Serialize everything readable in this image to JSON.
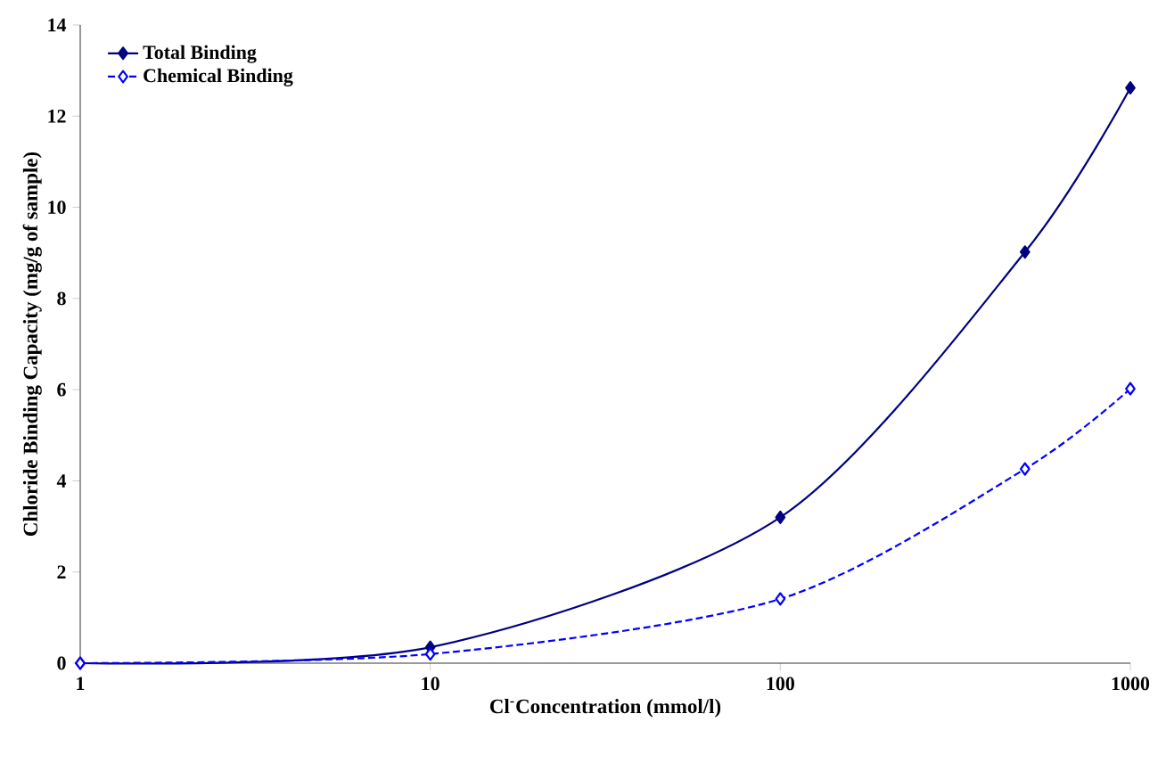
{
  "chart_data": {
    "type": "line",
    "xlabel": "Cl$^{-}$Concentration (mmol/l)",
    "ylabel": "Chloride Binding Capacity (mg/g of sample)",
    "x": [
      1,
      10,
      100,
      500,
      1000
    ],
    "series": [
      {
        "name": "Total Binding",
        "color": "#000080",
        "values": [
          0,
          0.35,
          3.2,
          9.02,
          12.62
        ],
        "marker": "diamond",
        "line_style": "solid"
      },
      {
        "name": "Chemical Binding",
        "color": "#0000ff",
        "values": [
          0,
          0.2,
          1.41,
          4.26,
          6.02
        ],
        "marker": "diamond",
        "line_style": "dashed"
      }
    ],
    "log": "x",
    "xlim": [
      1,
      1000
    ],
    "xticks": [
      1,
      10,
      100,
      1000
    ],
    "ylim": [
      0,
      14
    ],
    "yticks": [
      0,
      2,
      4,
      6,
      8,
      10,
      12,
      14
    ],
    "grid": false,
    "legend": "top left"
  }
}
